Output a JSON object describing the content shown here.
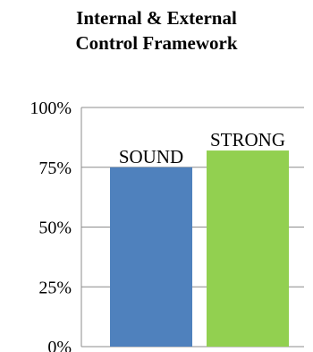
{
  "chart_data": {
    "type": "bar",
    "title_line1": "Internal & External",
    "title_line2": "Control Framework",
    "categories": [
      "SOUND",
      "STRONG"
    ],
    "values": [
      75,
      82
    ],
    "data_labels": [
      "SOUND",
      "STRONG"
    ],
    "bar_colors": [
      "#4F81BD",
      "#92D050"
    ],
    "ylim": [
      0,
      100
    ],
    "y_ticks": [
      0,
      25,
      50,
      75,
      100
    ],
    "y_tick_labels": [
      "0%",
      "25%",
      "50%",
      "75%",
      "100%"
    ],
    "grid": true,
    "xlabel": "",
    "ylabel": ""
  }
}
